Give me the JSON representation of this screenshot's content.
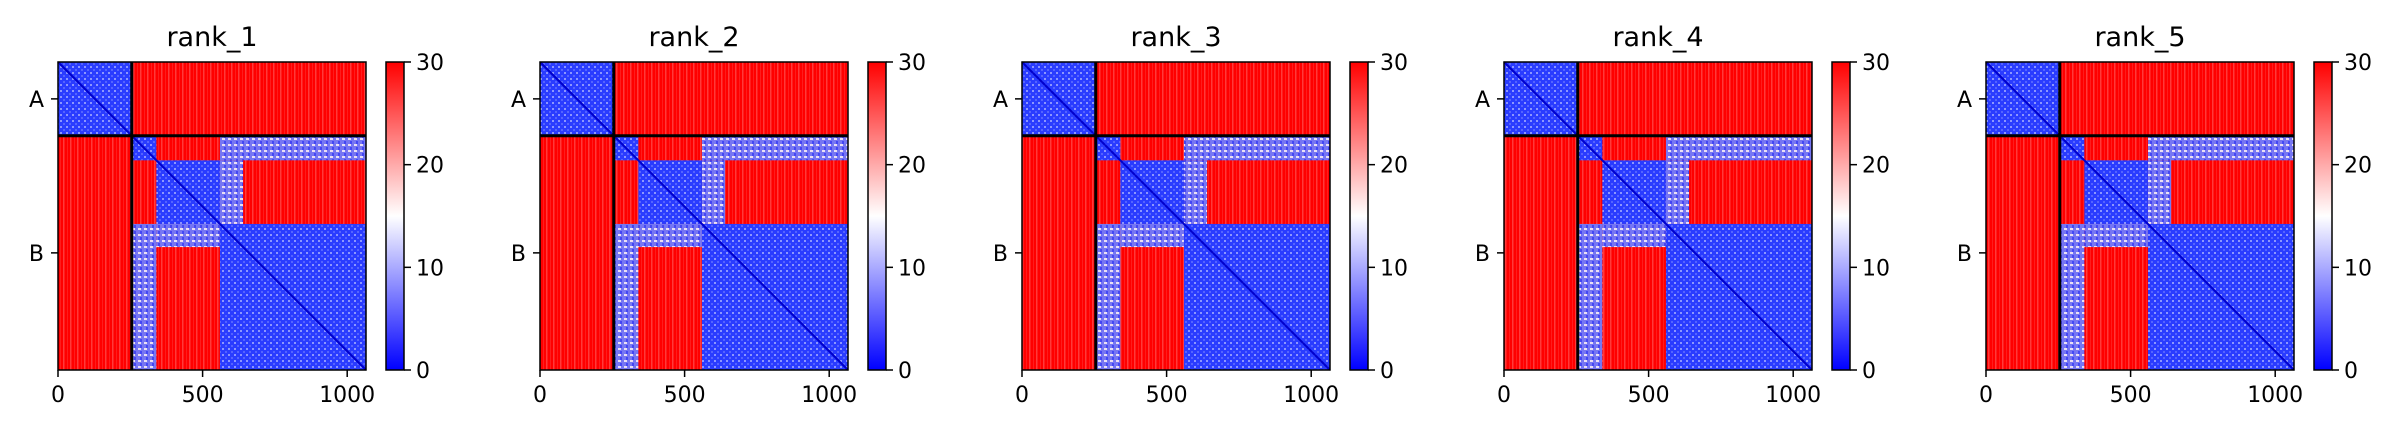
{
  "chart_data": [
    {
      "type": "heatmap",
      "title": "rank_1",
      "chain_labels": [
        "A",
        "B"
      ],
      "chain_lengths": [
        255,
        810
      ],
      "x_ticks": [
        0,
        500,
        1000
      ],
      "xlim": [
        0,
        1065
      ],
      "colorbar": {
        "ticks": [
          0,
          10,
          20,
          30
        ],
        "range": [
          0,
          30
        ],
        "colors": [
          "#0000ff",
          "#ffffff",
          "#ff0000"
        ]
      },
      "blocks": [
        [
          0,
          255,
          0
        ],
        [
          255,
          340,
          0
        ],
        [
          340,
          560,
          0
        ],
        [
          560,
          1065,
          0
        ]
      ],
      "interactions": [
        [
          255,
          340,
          560,
          1065,
          1
        ],
        [
          340,
          560,
          560,
          640,
          1
        ]
      ]
    },
    {
      "type": "heatmap",
      "title": "rank_2",
      "chain_labels": [
        "A",
        "B"
      ],
      "chain_lengths": [
        255,
        810
      ],
      "x_ticks": [
        0,
        500,
        1000
      ],
      "xlim": [
        0,
        1065
      ],
      "colorbar": {
        "ticks": [
          0,
          10,
          20,
          30
        ],
        "range": [
          0,
          30
        ],
        "colors": [
          "#0000ff",
          "#ffffff",
          "#ff0000"
        ]
      },
      "blocks": [
        [
          0,
          255,
          0
        ],
        [
          255,
          340,
          0
        ],
        [
          340,
          560,
          0
        ],
        [
          560,
          1065,
          0
        ]
      ],
      "interactions": [
        [
          255,
          340,
          560,
          1065,
          1
        ],
        [
          340,
          560,
          560,
          640,
          1
        ]
      ]
    },
    {
      "type": "heatmap",
      "title": "rank_3",
      "chain_labels": [
        "A",
        "B"
      ],
      "chain_lengths": [
        255,
        810
      ],
      "x_ticks": [
        0,
        500,
        1000
      ],
      "xlim": [
        0,
        1065
      ],
      "colorbar": {
        "ticks": [
          0,
          10,
          20,
          30
        ],
        "range": [
          0,
          30
        ],
        "colors": [
          "#0000ff",
          "#ffffff",
          "#ff0000"
        ]
      },
      "blocks": [
        [
          0,
          255,
          0
        ],
        [
          255,
          340,
          0
        ],
        [
          340,
          560,
          0
        ],
        [
          560,
          1065,
          0
        ]
      ],
      "interactions": [
        [
          255,
          340,
          560,
          1065,
          1
        ],
        [
          340,
          560,
          560,
          640,
          1
        ]
      ]
    },
    {
      "type": "heatmap",
      "title": "rank_4",
      "chain_labels": [
        "A",
        "B"
      ],
      "chain_lengths": [
        255,
        810
      ],
      "x_ticks": [
        0,
        500,
        1000
      ],
      "xlim": [
        0,
        1065
      ],
      "colorbar": {
        "ticks": [
          0,
          10,
          20,
          30
        ],
        "range": [
          0,
          30
        ],
        "colors": [
          "#0000ff",
          "#ffffff",
          "#ff0000"
        ]
      },
      "blocks": [
        [
          0,
          255,
          0
        ],
        [
          255,
          340,
          0
        ],
        [
          340,
          560,
          0
        ],
        [
          560,
          1065,
          0
        ]
      ],
      "interactions": [
        [
          255,
          340,
          560,
          1065,
          1
        ],
        [
          340,
          560,
          560,
          640,
          1
        ]
      ]
    },
    {
      "type": "heatmap",
      "title": "rank_5",
      "chain_labels": [
        "A",
        "B"
      ],
      "chain_lengths": [
        255,
        810
      ],
      "x_ticks": [
        0,
        500,
        1000
      ],
      "xlim": [
        0,
        1065
      ],
      "colorbar": {
        "ticks": [
          0,
          10,
          20,
          30
        ],
        "range": [
          0,
          30
        ],
        "colors": [
          "#0000ff",
          "#ffffff",
          "#ff0000"
        ]
      },
      "blocks": [
        [
          0,
          255,
          0
        ],
        [
          255,
          340,
          0
        ],
        [
          340,
          560,
          0
        ],
        [
          560,
          1065,
          0
        ]
      ],
      "interactions": [
        [
          255,
          340,
          560,
          1065,
          1
        ],
        [
          340,
          560,
          560,
          640,
          1
        ]
      ]
    }
  ]
}
